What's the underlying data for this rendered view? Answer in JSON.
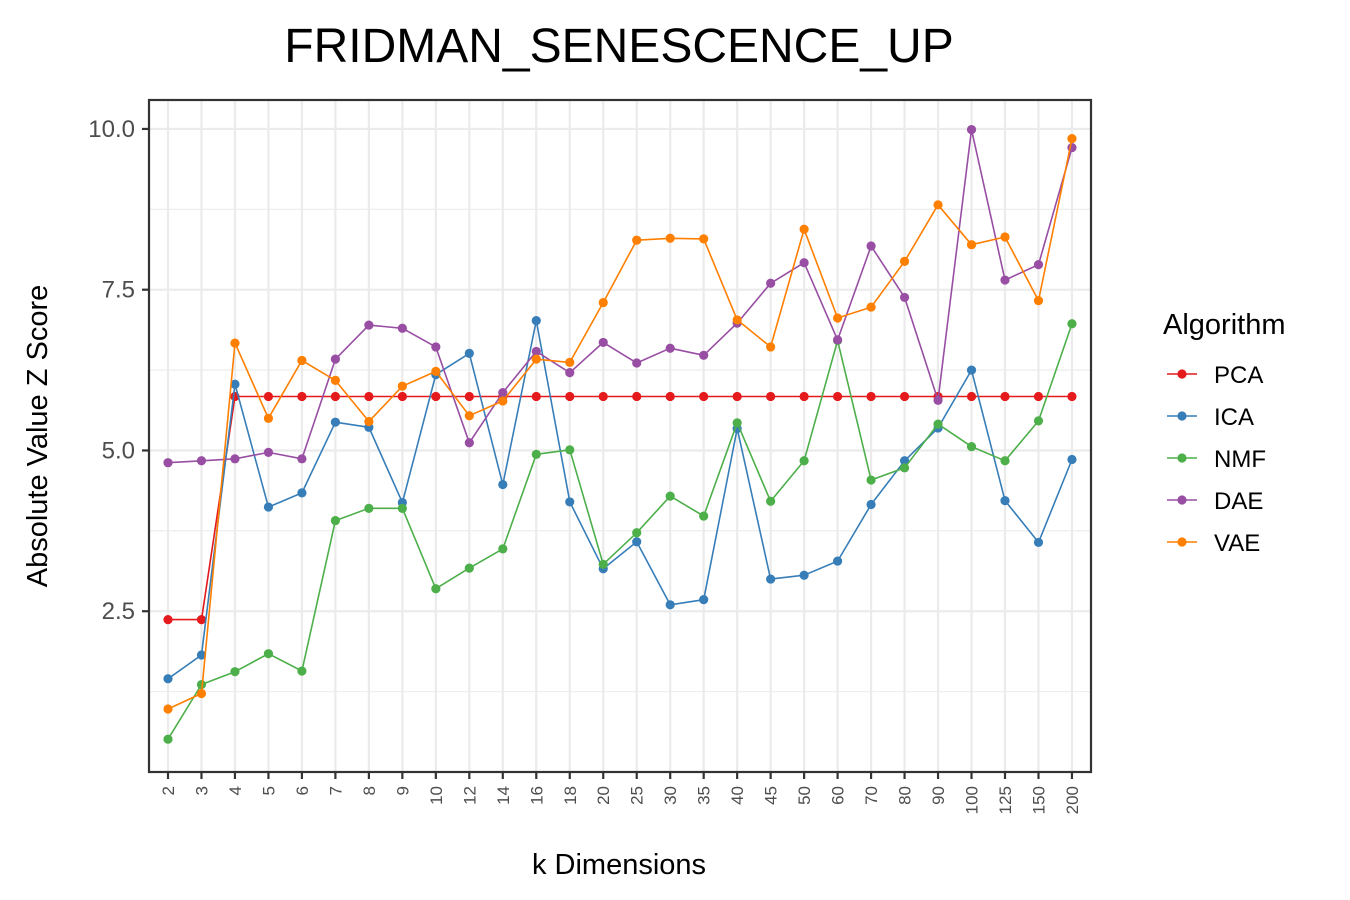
{
  "chart_data": {
    "type": "line",
    "title": "FRIDMAN_SENESCENCE_UP",
    "xlabel": "k Dimensions",
    "ylabel": "Absolute Value Z Score",
    "categories": [
      "2",
      "3",
      "4",
      "5",
      "6",
      "7",
      "8",
      "9",
      "10",
      "12",
      "14",
      "16",
      "18",
      "20",
      "25",
      "30",
      "35",
      "40",
      "45",
      "50",
      "60",
      "70",
      "80",
      "90",
      "100",
      "125",
      "150",
      "200"
    ],
    "ylim": [
      0.0,
      10.45
    ],
    "yticks": [
      2.5,
      5.0,
      7.5,
      10.0
    ],
    "ytick_labels": [
      "2.5",
      "5.0",
      "7.5",
      "10.0"
    ],
    "grid": true,
    "legend": {
      "title": "Algorithm",
      "position": "right"
    },
    "series": [
      {
        "name": "PCA",
        "color": "#e41a1c",
        "values": [
          2.37,
          2.37,
          5.84,
          5.84,
          5.84,
          5.84,
          5.84,
          5.84,
          5.84,
          5.84,
          5.84,
          5.84,
          5.84,
          5.84,
          5.84,
          5.84,
          5.84,
          5.84,
          5.84,
          5.84,
          5.84,
          5.84,
          5.84,
          5.84,
          5.84,
          5.84,
          5.84,
          5.84
        ]
      },
      {
        "name": "ICA",
        "color": "#377eb8",
        "values": [
          1.45,
          1.82,
          6.03,
          4.12,
          4.34,
          5.44,
          5.36,
          4.19,
          6.18,
          6.51,
          4.47,
          7.02,
          4.2,
          3.16,
          3.58,
          2.6,
          2.68,
          5.34,
          3.0,
          3.06,
          3.28,
          4.16,
          4.84,
          5.35,
          6.25,
          4.22,
          3.57,
          4.86
        ]
      },
      {
        "name": "NMF",
        "color": "#4daf4a",
        "values": [
          0.51,
          1.36,
          1.56,
          1.84,
          1.57,
          3.91,
          4.1,
          4.1,
          2.85,
          3.17,
          3.47,
          4.94,
          5.01,
          3.23,
          3.72,
          4.29,
          3.98,
          5.43,
          4.21,
          4.84,
          6.71,
          4.54,
          4.73,
          5.41,
          5.06,
          4.84,
          5.46,
          6.97
        ]
      },
      {
        "name": "DAE",
        "color": "#984ea3",
        "values": [
          4.81,
          4.84,
          4.87,
          4.97,
          4.87,
          6.42,
          6.95,
          6.9,
          6.61,
          5.12,
          5.9,
          6.54,
          6.21,
          6.68,
          6.36,
          6.59,
          6.48,
          6.98,
          7.6,
          7.92,
          6.72,
          8.18,
          7.38,
          5.78,
          9.99,
          7.65,
          7.89,
          9.71
        ]
      },
      {
        "name": "VAE",
        "color": "#ff7f00",
        "values": [
          0.98,
          1.22,
          6.67,
          5.5,
          6.4,
          6.09,
          5.45,
          6.0,
          6.23,
          5.54,
          5.77,
          6.42,
          6.37,
          7.3,
          8.27,
          8.3,
          8.29,
          7.03,
          6.61,
          8.44,
          7.06,
          7.23,
          7.94,
          8.82,
          8.2,
          8.32,
          7.33,
          9.85
        ]
      }
    ]
  }
}
